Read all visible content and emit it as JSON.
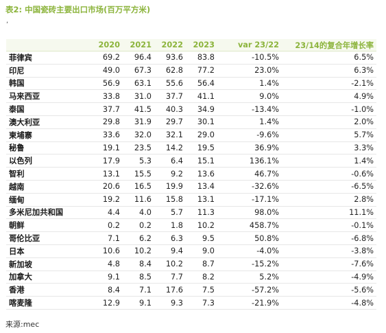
{
  "title": "表2: 中国瓷砖主要出口市场(百万平方米)",
  "mark": ",",
  "table": {
    "headers": [
      "",
      "2020",
      "2021",
      "2022",
      "2023",
      "var 23/22",
      "23/14的复合年增长率"
    ],
    "rows": [
      [
        "菲律宾",
        "69.2",
        "96.4",
        "93.6",
        "83.8",
        "-10.5%",
        "6.5%"
      ],
      [
        "印尼",
        "49.0",
        "67.3",
        "62.8",
        "77.2",
        "23.0%",
        "6.3%"
      ],
      [
        "韩国",
        "56.9",
        "63.1",
        "55.6",
        "56.4",
        "1.4%",
        "-2.1%"
      ],
      [
        "马来西亚",
        "33.8",
        "31.0",
        "37.7",
        "41.1",
        "9.0%",
        "4.9%"
      ],
      [
        "泰国",
        "37.7",
        "41.5",
        "40.3",
        "34.9",
        "-13.4%",
        "-1.0%"
      ],
      [
        "澳大利亚",
        "29.8",
        "31.9",
        "29.7",
        "30.1",
        "1.4%",
        "2.0%"
      ],
      [
        "柬埔寨",
        "33.6",
        "32.0",
        "32.1",
        "29.0",
        "-9.6%",
        "5.7%"
      ],
      [
        "秘鲁",
        "19.1",
        "23.5",
        "14.2",
        "19.5",
        "36.9%",
        "3.3%"
      ],
      [
        "以色列",
        "17.9",
        "5.3",
        "6.4",
        "15.1",
        "136.1%",
        "1.4%"
      ],
      [
        "智利",
        "13.1",
        "15.5",
        "9.2",
        "13.6",
        "46.7%",
        "-0.6%"
      ],
      [
        "越南",
        "20.6",
        "16.5",
        "19.9",
        "13.4",
        "-32.6%",
        "-6.5%"
      ],
      [
        "缅甸",
        "19.2",
        "11.6",
        "15.8",
        "13.1",
        "-17.1%",
        "2.8%"
      ],
      [
        "多米尼加共和国",
        "4.4",
        "4.0",
        "5.7",
        "11.3",
        "98.0%",
        "11.1%"
      ],
      [
        "朝鲜",
        "0.2",
        "0.2",
        "1.8",
        "10.2",
        "458.7%",
        "-0.1%"
      ],
      [
        "哥伦比亚",
        "7.1",
        "6.2",
        "6.3",
        "9.5",
        "50.8%",
        "-6.8%"
      ],
      [
        "日本",
        "10.6",
        "10.2",
        "9.4",
        "9.0",
        "-4.0%",
        "-3.8%"
      ],
      [
        "新加坡",
        "4.8",
        "8.4",
        "10.2",
        "8.7",
        "-15.2%",
        "-7.6%"
      ],
      [
        "加拿大",
        "9.1",
        "8.5",
        "7.7",
        "8.2",
        "5.2%",
        "-4.9%"
      ],
      [
        "香港",
        "8.4",
        "7.1",
        "17.6",
        "7.5",
        "-57.2%",
        "-5.6%"
      ],
      [
        "喀麦隆",
        "12.9",
        "9.1",
        "9.3",
        "7.3",
        "-21.9%",
        "-4.8%"
      ]
    ]
  },
  "source": "来源:mec",
  "colors": {
    "accent": "#8cb43c",
    "header_bg": "#f6f9ee"
  }
}
